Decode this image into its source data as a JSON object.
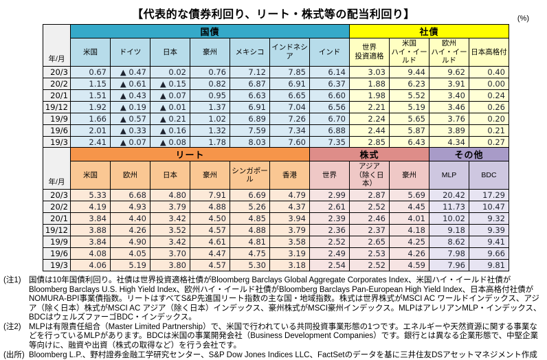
{
  "title": "【代表的な債券利回り、リート・株式等の配当利回り】",
  "unit_label": "(%)",
  "row_header_label": "年/月",
  "months": [
    "20/3",
    "20/2",
    "20/1",
    "19/12",
    "19/9",
    "19/6",
    "19/3"
  ],
  "colors": {
    "govbond_band": "#35a9c9",
    "govbond_sub": "#b7dcea",
    "govbond_cell": "#d8eaf4",
    "corpbond_band": "#ffff00",
    "corpbond_sub": "#ffffc2",
    "corpbond_cell": "#ffffd6",
    "reit_band": "#f6954a",
    "reit_sub": "#fac793",
    "reit_cell": "#fce9d8",
    "equity_band": "#de8d89",
    "equity_sub": "#efc8c6",
    "equity_cell": "#f6e4e3",
    "other_band": "#a89bc8",
    "other_sub": "#cec7e0",
    "other_cell": "#e7e4f2",
    "row_header_bg": "#f0f0f0",
    "border": "#000000"
  },
  "table1": {
    "groups": [
      {
        "key": "govbond",
        "label": "国債",
        "band_color": "#35a9c9",
        "sub_color": "#b7dcea",
        "cell_color": "#d8eaf4",
        "columns": [
          "米国",
          "ドイツ",
          "日本",
          "豪州",
          "メキシコ",
          "インドネシア",
          "インド"
        ]
      },
      {
        "key": "corpbond",
        "label": "社債",
        "band_color": "#ffff00",
        "sub_color": "#ffffc2",
        "cell_color": "#ffffd6",
        "columns": [
          "世界\n投資適格",
          "米国\nハイ・イールド",
          "欧州\nハイ・イールド",
          "日本高格付"
        ]
      }
    ],
    "rows": [
      [
        "0.67",
        "▲ 0.47",
        "0.02",
        "0.76",
        "7.12",
        "7.85",
        "6.14",
        "3.03",
        "9.44",
        "9.62",
        "0.40"
      ],
      [
        "1.15",
        "▲ 0.61",
        "▲ 0.15",
        "0.82",
        "6.87",
        "6.91",
        "6.37",
        "1.88",
        "6.23",
        "3.91",
        "0.00"
      ],
      [
        "1.51",
        "▲ 0.43",
        "▲ 0.07",
        "0.95",
        "6.63",
        "6.65",
        "6.60",
        "1.98",
        "5.52",
        "3.40",
        "0.24"
      ],
      [
        "1.92",
        "▲ 0.19",
        "▲ 0.01",
        "1.37",
        "6.91",
        "7.04",
        "6.56",
        "2.21",
        "5.19",
        "3.46",
        "0.26"
      ],
      [
        "1.66",
        "▲ 0.57",
        "▲ 0.21",
        "1.02",
        "6.89",
        "7.26",
        "6.70",
        "2.24",
        "5.65",
        "3.76",
        "0.20"
      ],
      [
        "2.01",
        "▲ 0.33",
        "▲ 0.16",
        "1.32",
        "7.59",
        "7.34",
        "6.88",
        "2.44",
        "5.87",
        "3.89",
        "0.21"
      ],
      [
        "2.41",
        "▲ 0.07",
        "▲ 0.08",
        "1.78",
        "8.03",
        "7.60",
        "7.35",
        "2.85",
        "6.43",
        "4.34",
        "0.27"
      ]
    ]
  },
  "table2": {
    "groups": [
      {
        "key": "reit",
        "label": "リート",
        "band_color": "#f6954a",
        "sub_color": "#fac793",
        "cell_color": "#fce9d8",
        "columns": [
          "米国",
          "欧州",
          "日本",
          "豪州",
          "シンガポール",
          "香港"
        ]
      },
      {
        "key": "equity",
        "label": "株式",
        "band_color": "#de8d89",
        "sub_color": "#efc8c6",
        "cell_color": "#f6e4e3",
        "columns": [
          "世界",
          "アジア\n（除く日本）",
          "豪州"
        ]
      },
      {
        "key": "other",
        "label": "その他",
        "band_color": "#a89bc8",
        "sub_color": "#cec7e0",
        "cell_color": "#e7e4f2",
        "columns": [
          "MLP",
          "BDC"
        ]
      }
    ],
    "rows": [
      [
        "5.33",
        "6.68",
        "4.80",
        "7.91",
        "6.69",
        "4.79",
        "2.99",
        "2.87",
        "5.69",
        "20.42",
        "17.29"
      ],
      [
        "4.19",
        "4.93",
        "3.79",
        "4.88",
        "5.26",
        "4.37",
        "2.61",
        "2.52",
        "4.45",
        "11.73",
        "10.47"
      ],
      [
        "3.84",
        "4.40",
        "3.42",
        "4.50",
        "4.85",
        "3.94",
        "2.39",
        "2.46",
        "4.01",
        "10.02",
        "9.32"
      ],
      [
        "3.88",
        "4.26",
        "3.52",
        "4.57",
        "4.88",
        "3.79",
        "2.36",
        "2.37",
        "4.18",
        "9.18",
        "9.39"
      ],
      [
        "3.84",
        "4.90",
        "3.42",
        "4.61",
        "4.81",
        "3.58",
        "2.52",
        "2.65",
        "4.25",
        "8.62",
        "9.41"
      ],
      [
        "4.08",
        "4.05",
        "3.70",
        "4.47",
        "4.75",
        "3.19",
        "2.49",
        "2.53",
        "4.26",
        "7.98",
        "9.66"
      ],
      [
        "4.06",
        "5.19",
        "3.80",
        "4.57",
        "5.30",
        "3.18",
        "2.54",
        "2.52",
        "4.59",
        "7.96",
        "9.81"
      ]
    ]
  },
  "notes": [
    {
      "marker": "(注1)",
      "text": "国債は10年国債利回り。社債は世界投資適格社債がBloomberg Barclays Global Aggregate Corporates Index、米国ハイ・イールド社債がBloomberg Barclays U.S. High Yield Index、欧州ハイ・イールド社債がBloomberg Barclays Pan-European High Yield Index、日本高格付社債がNOMURA-BPI事業債指数。リートはすべてS&P先進国リート指数の主な国・地域指数。株式は世界株式がMSCI AC ワールドインデックス、アジア（除く日本）株式がMSCI AC アジア（除く日本）インデックス、豪州株式がMSCI豪州インデックス。MLPはアレリアンMLP・インデックス、BDCはウェルズファーゴBDC・インデックス。"
    },
    {
      "marker": "(注2)",
      "text": "MLPは有限責任組合（Master Limited Partnership）で、米国で行われている共同投資事業形態の1つです。エネルギーや天然資源に関する事業などを行っているMLPがあります。BDCは米国の事業開発会社（Business Development Companies）です。銀行とは異なる企業形態で、中堅企業等向けに、融資や出資（株式の取得など）を行う会社です。"
    },
    {
      "marker": "(出所)",
      "text": "Bloomberg L.P.、野村證券金融工学研究センター、S&P Dow Jones Indices LLC、FactSetのデータを基に三井住友DSアセットマネジメント作成"
    }
  ]
}
